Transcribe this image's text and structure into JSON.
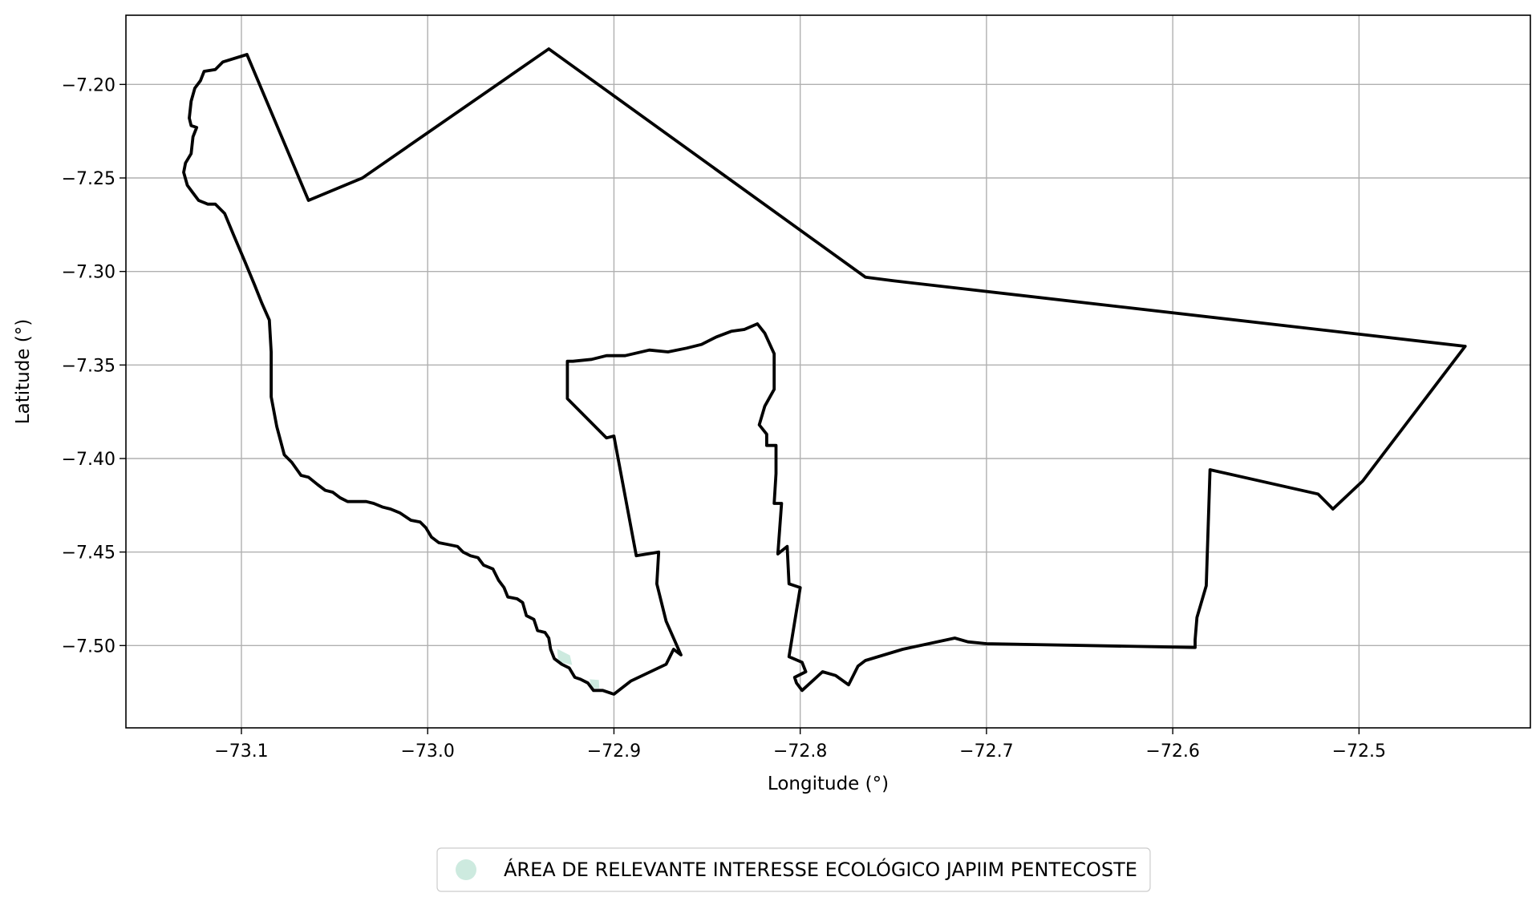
{
  "chart_data": {
    "type": "map",
    "xlabel": "Longitude (°)",
    "ylabel": "Latitude (°)",
    "xlim": [
      -73.162,
      -72.408
    ],
    "ylim": [
      -7.544,
      -7.163
    ],
    "grid": true,
    "xticks": [
      -73.1,
      -73.0,
      -72.9,
      -72.8,
      -72.7,
      -72.6,
      -72.5
    ],
    "xtick_labels": [
      "−73.1",
      "−73.0",
      "−72.9",
      "−72.8",
      "−72.7",
      "−72.6",
      "−72.5"
    ],
    "yticks": [
      -7.2,
      -7.25,
      -7.3,
      -7.35,
      -7.4,
      -7.45,
      -7.5
    ],
    "ytick_labels": [
      "−7.20",
      "−7.25",
      "−7.30",
      "−7.35",
      "−7.40",
      "−7.45",
      "−7.50"
    ],
    "legend": {
      "placement": "bottom-center, outside plot",
      "entries": [
        {
          "label": "ÁREA DE RELEVANTE INTERESSE ECOLÓGICO JAPIIM PENTECOSTE",
          "color": "#cdeadf",
          "marker": "circle"
        }
      ]
    },
    "boundary_color": "#000000",
    "fill_color": "#cdeadf",
    "features": [
      {
        "name": "",
        "boundary": [
          [
            -73.097,
            -7.184
          ],
          [
            -73.064,
            -7.262
          ],
          [
            -73.035,
            -7.25
          ],
          [
            -72.935,
            -7.181
          ],
          [
            -72.765,
            -7.303
          ],
          [
            -72.75,
            -7.305
          ],
          [
            -72.443,
            -7.34
          ],
          [
            -72.498,
            -7.412
          ],
          [
            -72.514,
            -7.427
          ],
          [
            -72.522,
            -7.419
          ],
          [
            -72.58,
            -7.406
          ],
          [
            -72.582,
            -7.468
          ],
          [
            -72.587,
            -7.485
          ],
          [
            -72.588,
            -7.497
          ],
          [
            -72.588,
            -7.501
          ],
          [
            -72.7,
            -7.499
          ],
          [
            -72.71,
            -7.498
          ],
          [
            -72.717,
            -7.496
          ],
          [
            -72.745,
            -7.502
          ],
          [
            -72.765,
            -7.508
          ],
          [
            -72.769,
            -7.511
          ],
          [
            -72.774,
            -7.521
          ],
          [
            -72.781,
            -7.516
          ],
          [
            -72.788,
            -7.514
          ],
          [
            -72.799,
            -7.524
          ],
          [
            -72.802,
            -7.52
          ],
          [
            -72.803,
            -7.517
          ],
          [
            -72.797,
            -7.514
          ],
          [
            -72.799,
            -7.509
          ],
          [
            -72.806,
            -7.506
          ],
          [
            -72.8,
            -7.469
          ],
          [
            -72.806,
            -7.467
          ],
          [
            -72.807,
            -7.447
          ],
          [
            -72.812,
            -7.451
          ],
          [
            -72.81,
            -7.424
          ],
          [
            -72.814,
            -7.424
          ],
          [
            -72.813,
            -7.408
          ],
          [
            -72.813,
            -7.393
          ],
          [
            -72.818,
            -7.393
          ],
          [
            -72.818,
            -7.387
          ],
          [
            -72.822,
            -7.382
          ],
          [
            -72.819,
            -7.372
          ],
          [
            -72.814,
            -7.363
          ],
          [
            -72.814,
            -7.344
          ],
          [
            -72.819,
            -7.333
          ],
          [
            -72.823,
            -7.328
          ],
          [
            -72.83,
            -7.331
          ],
          [
            -72.837,
            -7.332
          ],
          [
            -72.845,
            -7.335
          ],
          [
            -72.853,
            -7.339
          ],
          [
            -72.861,
            -7.341
          ],
          [
            -72.871,
            -7.343
          ],
          [
            -72.881,
            -7.342
          ],
          [
            -72.894,
            -7.345
          ],
          [
            -72.904,
            -7.345
          ],
          [
            -72.912,
            -7.347
          ],
          [
            -72.922,
            -7.348
          ],
          [
            -72.925,
            -7.348
          ],
          [
            -72.925,
            -7.368
          ],
          [
            -72.904,
            -7.389
          ],
          [
            -72.9,
            -7.388
          ],
          [
            -72.888,
            -7.452
          ],
          [
            -72.876,
            -7.45
          ],
          [
            -72.877,
            -7.467
          ],
          [
            -72.872,
            -7.487
          ],
          [
            -72.864,
            -7.505
          ],
          [
            -72.868,
            -7.502
          ],
          [
            -72.872,
            -7.51
          ],
          [
            -72.891,
            -7.519
          ],
          [
            -72.9,
            -7.526
          ],
          [
            -72.906,
            -7.524
          ],
          [
            -72.911,
            -7.524
          ],
          [
            -72.914,
            -7.52
          ],
          [
            -72.918,
            -7.518
          ],
          [
            -72.921,
            -7.517
          ],
          [
            -72.924,
            -7.512
          ],
          [
            -72.928,
            -7.51
          ],
          [
            -72.932,
            -7.507
          ],
          [
            -72.934,
            -7.502
          ],
          [
            -72.935,
            -7.496
          ],
          [
            -72.937,
            -7.493
          ],
          [
            -72.941,
            -7.492
          ],
          [
            -72.943,
            -7.486
          ],
          [
            -72.947,
            -7.484
          ],
          [
            -72.949,
            -7.477
          ],
          [
            -72.952,
            -7.475
          ],
          [
            -72.957,
            -7.474
          ],
          [
            -72.959,
            -7.469
          ],
          [
            -72.962,
            -7.465
          ],
          [
            -72.965,
            -7.459
          ],
          [
            -72.97,
            -7.457
          ],
          [
            -72.973,
            -7.453
          ],
          [
            -72.977,
            -7.452
          ],
          [
            -72.981,
            -7.45
          ],
          [
            -72.984,
            -7.447
          ],
          [
            -72.989,
            -7.446
          ],
          [
            -72.994,
            -7.445
          ],
          [
            -72.998,
            -7.442
          ],
          [
            -73.001,
            -7.437
          ],
          [
            -73.004,
            -7.434
          ],
          [
            -73.009,
            -7.433
          ],
          [
            -73.012,
            -7.431
          ],
          [
            -73.015,
            -7.429
          ],
          [
            -73.02,
            -7.427
          ],
          [
            -73.024,
            -7.426
          ],
          [
            -73.029,
            -7.424
          ],
          [
            -73.033,
            -7.423
          ],
          [
            -73.039,
            -7.423
          ],
          [
            -73.043,
            -7.423
          ],
          [
            -73.047,
            -7.421
          ],
          [
            -73.051,
            -7.418
          ],
          [
            -73.055,
            -7.417
          ],
          [
            -73.059,
            -7.414
          ],
          [
            -73.064,
            -7.41
          ],
          [
            -73.068,
            -7.409
          ],
          [
            -73.073,
            -7.402
          ],
          [
            -73.077,
            -7.398
          ],
          [
            -73.081,
            -7.383
          ],
          [
            -73.084,
            -7.367
          ],
          [
            -73.084,
            -7.343
          ],
          [
            -73.085,
            -7.326
          ],
          [
            -73.089,
            -7.317
          ],
          [
            -73.093,
            -7.307
          ],
          [
            -73.098,
            -7.295
          ],
          [
            -73.104,
            -7.281
          ],
          [
            -73.109,
            -7.269
          ],
          [
            -73.114,
            -7.264
          ],
          [
            -73.118,
            -7.264
          ],
          [
            -73.123,
            -7.262
          ],
          [
            -73.126,
            -7.258
          ],
          [
            -73.129,
            -7.254
          ],
          [
            -73.131,
            -7.247
          ],
          [
            -73.13,
            -7.242
          ],
          [
            -73.127,
            -7.237
          ],
          [
            -73.126,
            -7.228
          ],
          [
            -73.124,
            -7.223
          ],
          [
            -73.127,
            -7.222
          ],
          [
            -73.128,
            -7.218
          ],
          [
            -73.127,
            -7.209
          ],
          [
            -73.125,
            -7.202
          ],
          [
            -73.122,
            -7.198
          ],
          [
            -73.12,
            -7.193
          ],
          [
            -73.114,
            -7.192
          ],
          [
            -73.11,
            -7.188
          ],
          [
            -73.097,
            -7.184
          ]
        ]
      },
      {
        "name": "ÁREA DE RELEVANTE INTERESSE ECOLÓGICO JAPIIM PENTECOSTE",
        "boundary": [
          [
            -72.93,
            -7.5025
          ],
          [
            -72.924,
            -7.5055
          ],
          [
            -72.923,
            -7.5098
          ],
          [
            -72.9295,
            -7.5083
          ],
          [
            -72.93,
            -7.5025
          ]
        ]
      },
      {
        "name": "ÁREA DE RELEVANTE INTERESSE ECOLÓGICO JAPIIM PENTECOSTE",
        "boundary": [
          [
            -72.9125,
            -7.5185
          ],
          [
            -72.9085,
            -7.5188
          ],
          [
            -72.9083,
            -7.5225
          ],
          [
            -72.9118,
            -7.5224
          ],
          [
            -72.9125,
            -7.5185
          ]
        ]
      }
    ]
  }
}
